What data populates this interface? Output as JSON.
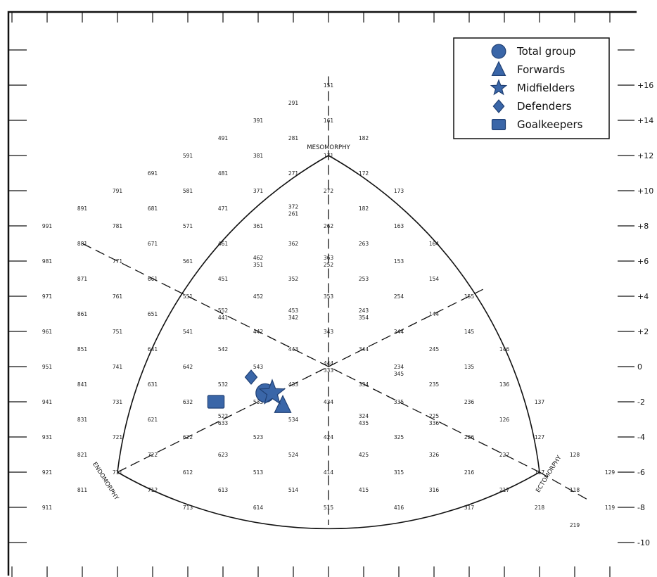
{
  "chart_data": {
    "type": "scatter",
    "title": "",
    "xlabel": "",
    "ylabel": "",
    "y_ticks": [
      "+16",
      "+14",
      "+12",
      "+10",
      "+8",
      "+6",
      "+4",
      "+2",
      "0",
      "-2",
      "-4",
      "-6",
      "-8",
      "-10"
    ],
    "axis_labels": {
      "mesomorphy": "MESOMORPHY",
      "endomorphy": "ENDOMORPHY",
      "ectomorphy": "ECTOMORPHY"
    },
    "legend": [
      {
        "name": "Total group",
        "marker": "circle"
      },
      {
        "name": "Forwards",
        "marker": "triangle"
      },
      {
        "name": "Midfielders",
        "marker": "star"
      },
      {
        "name": "Defenders",
        "marker": "diamond"
      },
      {
        "name": "Goalkeepers",
        "marker": "square"
      }
    ],
    "series": [
      {
        "name": "Total group",
        "marker": "circle",
        "x": -1.8,
        "y": -1.5
      },
      {
        "name": "Forwards",
        "marker": "triangle",
        "x": -1.3,
        "y": -2.2
      },
      {
        "name": "Midfielders",
        "marker": "star",
        "x": -1.6,
        "y": -1.5
      },
      {
        "name": "Defenders",
        "marker": "diamond",
        "x": -2.2,
        "y": -0.6
      },
      {
        "name": "Goalkeepers",
        "marker": "square",
        "x": -3.2,
        "y": -2.0
      }
    ],
    "marker_color": "#3a66a8",
    "marker_stroke": "#1f3f73",
    "somatotype_codes": [
      {
        "code": "151",
        "x": 0,
        "y": 16
      },
      {
        "code": "291",
        "x": -1,
        "y": 15
      },
      {
        "code": "161",
        "x": 0,
        "y": 14
      },
      {
        "code": "391",
        "x": -2,
        "y": 14
      },
      {
        "code": "491",
        "x": -3,
        "y": 13
      },
      {
        "code": "281",
        "x": -1,
        "y": 13
      },
      {
        "code": "182",
        "x": 1,
        "y": 13
      },
      {
        "code": "591",
        "x": -4,
        "y": 12
      },
      {
        "code": "381",
        "x": -2,
        "y": 12
      },
      {
        "code": "171",
        "x": 0,
        "y": 12
      },
      {
        "code": "691",
        "x": -5,
        "y": 11
      },
      {
        "code": "481",
        "x": -3,
        "y": 11
      },
      {
        "code": "271",
        "x": -1,
        "y": 11
      },
      {
        "code": "172",
        "x": 1,
        "y": 11
      },
      {
        "code": "791",
        "x": -6,
        "y": 10
      },
      {
        "code": "581",
        "x": -4,
        "y": 10
      },
      {
        "code": "371",
        "x": -2,
        "y": 10
      },
      {
        "code": "272",
        "x": 0,
        "y": 10
      },
      {
        "code": "173",
        "x": 2,
        "y": 10
      },
      {
        "code": "891",
        "x": -7,
        "y": 9
      },
      {
        "code": "681",
        "x": -5,
        "y": 9
      },
      {
        "code": "471",
        "x": -3,
        "y": 9
      },
      {
        "code": "372",
        "x": -1,
        "y": 9.1
      },
      {
        "code": "261",
        "x": -1,
        "y": 8.7
      },
      {
        "code": "182",
        "x": 1,
        "y": 9
      },
      {
        "code": "991",
        "x": -8,
        "y": 8
      },
      {
        "code": "781",
        "x": -6,
        "y": 8
      },
      {
        "code": "571",
        "x": -4,
        "y": 8
      },
      {
        "code": "361",
        "x": -2,
        "y": 8
      },
      {
        "code": "262",
        "x": 0,
        "y": 8
      },
      {
        "code": "163",
        "x": 2,
        "y": 8
      },
      {
        "code": "881",
        "x": -7,
        "y": 7
      },
      {
        "code": "671",
        "x": -5,
        "y": 7
      },
      {
        "code": "461",
        "x": -3,
        "y": 7
      },
      {
        "code": "362",
        "x": -1,
        "y": 7
      },
      {
        "code": "263",
        "x": 1,
        "y": 7
      },
      {
        "code": "164",
        "x": 3,
        "y": 7
      },
      {
        "code": "981",
        "x": -8,
        "y": 6
      },
      {
        "code": "771",
        "x": -6,
        "y": 6
      },
      {
        "code": "561",
        "x": -4,
        "y": 6
      },
      {
        "code": "462",
        "x": -2,
        "y": 6.2
      },
      {
        "code": "351",
        "x": -2,
        "y": 5.8
      },
      {
        "code": "363",
        "x": 0,
        "y": 6.2
      },
      {
        "code": "252",
        "x": 0,
        "y": 5.8
      },
      {
        "code": "153",
        "x": 2,
        "y": 6
      },
      {
        "code": "871",
        "x": -7,
        "y": 5
      },
      {
        "code": "661",
        "x": -5,
        "y": 5
      },
      {
        "code": "451",
        "x": -3,
        "y": 5
      },
      {
        "code": "352",
        "x": -1,
        "y": 5
      },
      {
        "code": "253",
        "x": 1,
        "y": 5
      },
      {
        "code": "154",
        "x": 3,
        "y": 5
      },
      {
        "code": "971",
        "x": -8,
        "y": 4
      },
      {
        "code": "761",
        "x": -6,
        "y": 4
      },
      {
        "code": "551",
        "x": -4,
        "y": 4
      },
      {
        "code": "452",
        "x": -2,
        "y": 4
      },
      {
        "code": "353",
        "x": 0,
        "y": 4
      },
      {
        "code": "254",
        "x": 2,
        "y": 4
      },
      {
        "code": "155",
        "x": 4,
        "y": 4
      },
      {
        "code": "861",
        "x": -7,
        "y": 3
      },
      {
        "code": "651",
        "x": -5,
        "y": 3
      },
      {
        "code": "552",
        "x": -3,
        "y": 3.2
      },
      {
        "code": "441",
        "x": -3,
        "y": 2.8
      },
      {
        "code": "453",
        "x": -1,
        "y": 3.2
      },
      {
        "code": "342",
        "x": -1,
        "y": 2.8
      },
      {
        "code": "243",
        "x": 1,
        "y": 3.2
      },
      {
        "code": "354",
        "x": 1,
        "y": 2.8
      },
      {
        "code": "144",
        "x": 3,
        "y": 3
      },
      {
        "code": "961",
        "x": -8,
        "y": 2
      },
      {
        "code": "751",
        "x": -6,
        "y": 2
      },
      {
        "code": "541",
        "x": -4,
        "y": 2
      },
      {
        "code": "442",
        "x": -2,
        "y": 2
      },
      {
        "code": "343",
        "x": 0,
        "y": 2
      },
      {
        "code": "244",
        "x": 2,
        "y": 2
      },
      {
        "code": "145",
        "x": 4,
        "y": 2
      },
      {
        "code": "851",
        "x": -7,
        "y": 1
      },
      {
        "code": "641",
        "x": -5,
        "y": 1
      },
      {
        "code": "542",
        "x": -3,
        "y": 1
      },
      {
        "code": "443",
        "x": -1,
        "y": 1
      },
      {
        "code": "344",
        "x": 1,
        "y": 1
      },
      {
        "code": "245",
        "x": 3,
        "y": 1
      },
      {
        "code": "146",
        "x": 5,
        "y": 1
      },
      {
        "code": "951",
        "x": -8,
        "y": 0
      },
      {
        "code": "741",
        "x": -6,
        "y": 0
      },
      {
        "code": "642",
        "x": -4,
        "y": 0
      },
      {
        "code": "543",
        "x": -2,
        "y": 0
      },
      {
        "code": "444",
        "x": 0,
        "y": 0.2
      },
      {
        "code": "333",
        "x": 0,
        "y": -0.2
      },
      {
        "code": "234",
        "x": 2,
        "y": 0
      },
      {
        "code": "345",
        "x": 2,
        "y": -0.4
      },
      {
        "code": "135",
        "x": 4,
        "y": 0
      },
      {
        "code": "841",
        "x": -7,
        "y": -1
      },
      {
        "code": "631",
        "x": -5,
        "y": -1
      },
      {
        "code": "532",
        "x": -3,
        "y": -1
      },
      {
        "code": "433",
        "x": -1,
        "y": -1
      },
      {
        "code": "334",
        "x": 1,
        "y": -1
      },
      {
        "code": "235",
        "x": 3,
        "y": -1
      },
      {
        "code": "136",
        "x": 5,
        "y": -1
      },
      {
        "code": "941",
        "x": -8,
        "y": -2
      },
      {
        "code": "731",
        "x": -6,
        "y": -2
      },
      {
        "code": "632",
        "x": -4,
        "y": -2
      },
      {
        "code": "533",
        "x": -2,
        "y": -2
      },
      {
        "code": "434",
        "x": 0,
        "y": -2
      },
      {
        "code": "335",
        "x": 2,
        "y": -2
      },
      {
        "code": "236",
        "x": 4,
        "y": -2
      },
      {
        "code": "137",
        "x": 6,
        "y": -2
      },
      {
        "code": "831",
        "x": -7,
        "y": -3
      },
      {
        "code": "621",
        "x": -5,
        "y": -3
      },
      {
        "code": "522",
        "x": -3,
        "y": -2.8
      },
      {
        "code": "633",
        "x": -3,
        "y": -3.2
      },
      {
        "code": "534",
        "x": -1,
        "y": -3
      },
      {
        "code": "324",
        "x": 1,
        "y": -2.8
      },
      {
        "code": "435",
        "x": 1,
        "y": -3.2
      },
      {
        "code": "225",
        "x": 3,
        "y": -2.8
      },
      {
        "code": "336",
        "x": 3,
        "y": -3.2
      },
      {
        "code": "126",
        "x": 5,
        "y": -3
      },
      {
        "code": "931",
        "x": -8,
        "y": -4
      },
      {
        "code": "721",
        "x": -6,
        "y": -4
      },
      {
        "code": "622",
        "x": -4,
        "y": -4
      },
      {
        "code": "523",
        "x": -2,
        "y": -4
      },
      {
        "code": "424",
        "x": 0,
        "y": -4
      },
      {
        "code": "325",
        "x": 2,
        "y": -4
      },
      {
        "code": "226",
        "x": 4,
        "y": -4
      },
      {
        "code": "127",
        "x": 6,
        "y": -4
      },
      {
        "code": "821",
        "x": -7,
        "y": -5
      },
      {
        "code": "722",
        "x": -5,
        "y": -5
      },
      {
        "code": "623",
        "x": -3,
        "y": -5
      },
      {
        "code": "524",
        "x": -1,
        "y": -5
      },
      {
        "code": "425",
        "x": 1,
        "y": -5
      },
      {
        "code": "326",
        "x": 3,
        "y": -5
      },
      {
        "code": "227",
        "x": 5,
        "y": -5
      },
      {
        "code": "128",
        "x": 7,
        "y": -5
      },
      {
        "code": "921",
        "x": -8,
        "y": -6
      },
      {
        "code": "711",
        "x": -6,
        "y": -6
      },
      {
        "code": "612",
        "x": -4,
        "y": -6
      },
      {
        "code": "513",
        "x": -2,
        "y": -6
      },
      {
        "code": "414",
        "x": 0,
        "y": -6
      },
      {
        "code": "315",
        "x": 2,
        "y": -6
      },
      {
        "code": "216",
        "x": 4,
        "y": -6
      },
      {
        "code": "117",
        "x": 6,
        "y": -6
      },
      {
        "code": "129",
        "x": 8,
        "y": -6
      },
      {
        "code": "811",
        "x": -7,
        "y": -7
      },
      {
        "code": "712",
        "x": -5,
        "y": -7
      },
      {
        "code": "613",
        "x": -3,
        "y": -7
      },
      {
        "code": "514",
        "x": -1,
        "y": -7
      },
      {
        "code": "415",
        "x": 1,
        "y": -7
      },
      {
        "code": "316",
        "x": 3,
        "y": -7
      },
      {
        "code": "217",
        "x": 5,
        "y": -7
      },
      {
        "code": "118",
        "x": 7,
        "y": -7
      },
      {
        "code": "911",
        "x": -8,
        "y": -8
      },
      {
        "code": "713",
        "x": -4,
        "y": -8
      },
      {
        "code": "614",
        "x": -2,
        "y": -8
      },
      {
        "code": "515",
        "x": 0,
        "y": -8
      },
      {
        "code": "416",
        "x": 2,
        "y": -8
      },
      {
        "code": "317",
        "x": 4,
        "y": -8
      },
      {
        "code": "218",
        "x": 6,
        "y": -8
      },
      {
        "code": "119",
        "x": 8,
        "y": -8
      },
      {
        "code": "219",
        "x": 7,
        "y": -9
      }
    ]
  }
}
